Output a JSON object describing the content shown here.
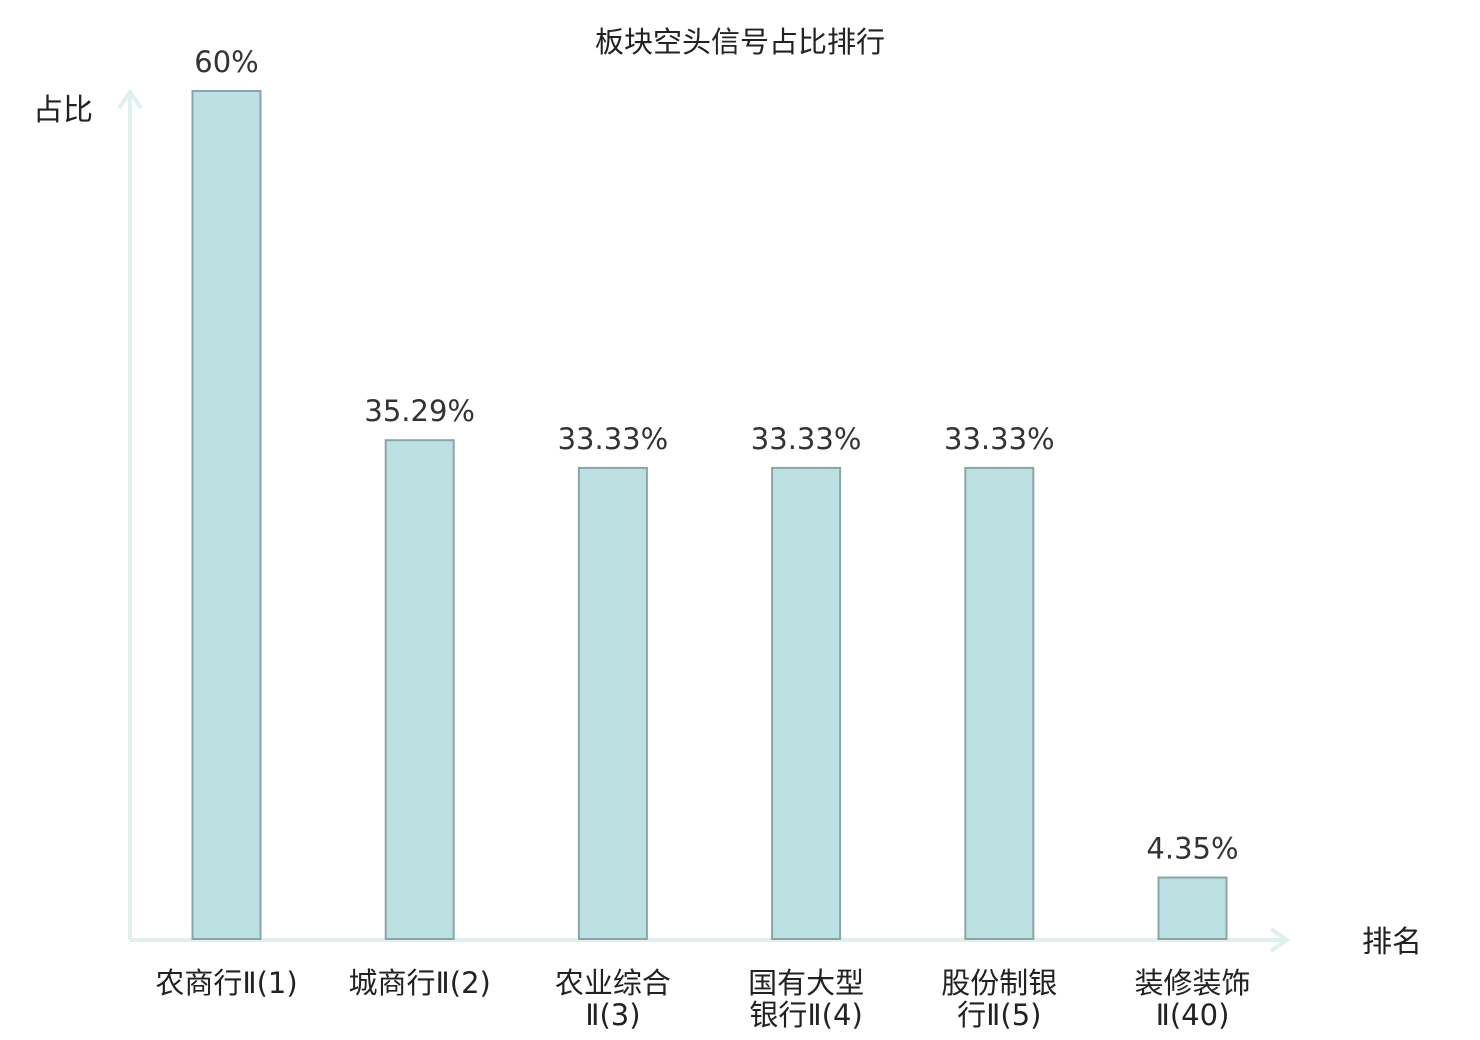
{
  "chart_data": {
    "type": "bar",
    "title": "板块空头信号占比排行",
    "xlabel": "排名",
    "ylabel": "占比",
    "ylim": [
      0,
      60
    ],
    "categories": [
      [
        "农商行Ⅱ(1)"
      ],
      [
        "城商行Ⅱ(2)"
      ],
      [
        "农业综合",
        "Ⅱ(3)"
      ],
      [
        "国有大型",
        "银行Ⅱ(4)"
      ],
      [
        "股份制银",
        "行Ⅱ(5)"
      ],
      [
        "装修装饰",
        "Ⅱ(40)"
      ]
    ],
    "values": [
      60,
      35.29,
      33.33,
      33.33,
      33.33,
      4.35
    ],
    "value_labels": [
      "60%",
      "35.29%",
      "33.33%",
      "33.33%",
      "33.33%",
      "4.35%"
    ],
    "highlight_index": 5,
    "colors": {
      "bar_fill": "#bde0e3",
      "bar_stroke": "#8aa5a8",
      "axis": "#dff1ef",
      "highlight_text": "#e60000",
      "text": "#222222"
    }
  }
}
